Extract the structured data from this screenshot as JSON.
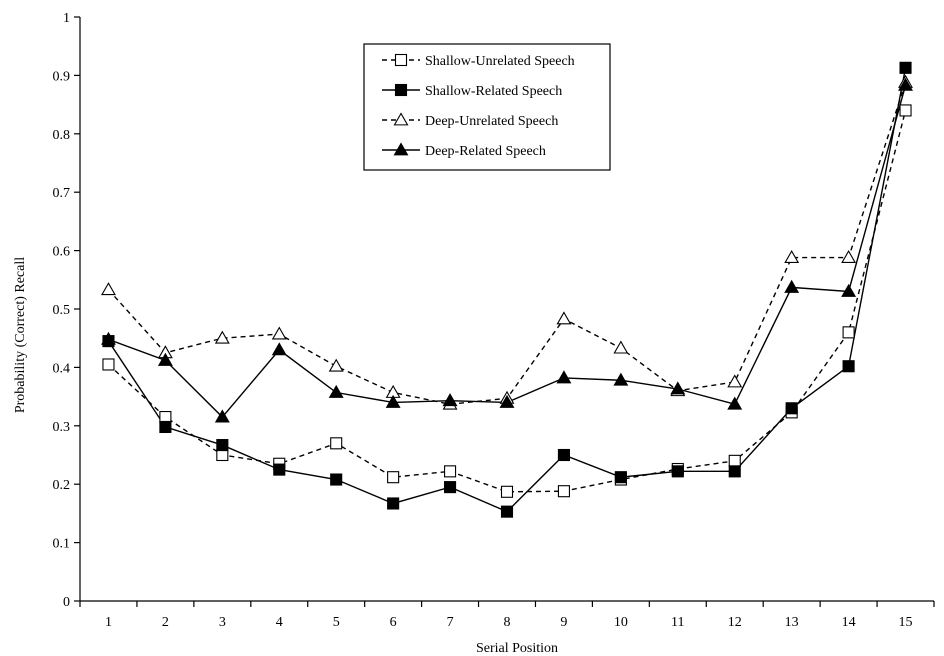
{
  "chart_data": {
    "type": "line",
    "title": "",
    "xlabel": "Serial Position",
    "ylabel": "Probability (Correct) Recall",
    "categories": [
      "1",
      "2",
      "3",
      "4",
      "5",
      "6",
      "7",
      "8",
      "9",
      "10",
      "11",
      "12",
      "13",
      "14",
      "15"
    ],
    "ylim": [
      0,
      1
    ],
    "yticks": [
      "0",
      "0.1",
      "0.2",
      "0.3",
      "0.4",
      "0.5",
      "0.6",
      "0.7",
      "0.8",
      "0.9",
      "1"
    ],
    "grid": false,
    "legend_position": "top-center",
    "series": [
      {
        "name": "Shallow-Unrelated Speech",
        "marker": "square-open",
        "line": "dashed",
        "values": [
          0.405,
          0.315,
          0.25,
          0.235,
          0.27,
          0.212,
          0.222,
          0.187,
          0.188,
          0.208,
          0.226,
          0.24,
          0.323,
          0.46,
          0.84
        ]
      },
      {
        "name": "Shallow-Related Speech",
        "marker": "square-filled",
        "line": "solid",
        "values": [
          0.445,
          0.298,
          0.267,
          0.225,
          0.208,
          0.167,
          0.195,
          0.153,
          0.25,
          0.212,
          0.222,
          0.222,
          0.33,
          0.402,
          0.913
        ]
      },
      {
        "name": "Deep-Unrelated Speech",
        "marker": "triangle-open",
        "line": "dashed",
        "values": [
          0.533,
          0.425,
          0.45,
          0.457,
          0.402,
          0.357,
          0.337,
          0.347,
          0.483,
          0.433,
          0.36,
          0.375,
          0.588,
          0.588,
          0.888
        ]
      },
      {
        "name": "Deep-Related Speech",
        "marker": "triangle-filled",
        "line": "solid",
        "values": [
          0.448,
          0.412,
          0.315,
          0.43,
          0.357,
          0.34,
          0.343,
          0.34,
          0.382,
          0.378,
          0.363,
          0.337,
          0.537,
          0.53,
          0.883
        ]
      }
    ]
  }
}
